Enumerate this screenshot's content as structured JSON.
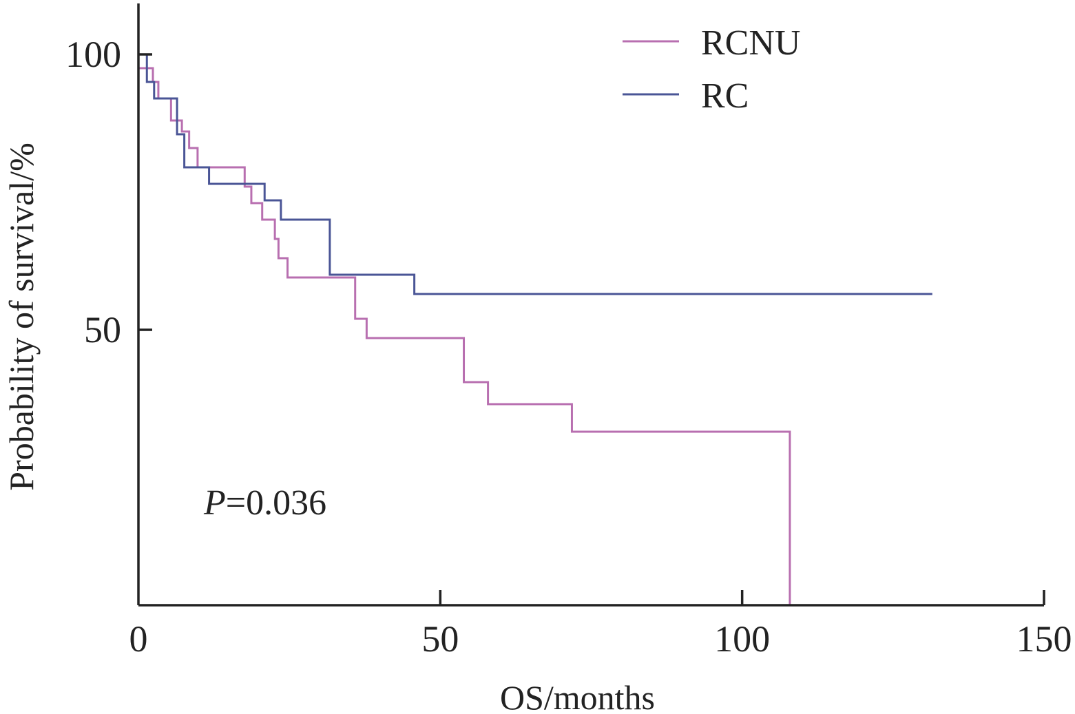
{
  "chart_data": {
    "type": "line",
    "title": "",
    "xlabel": "OS/months",
    "ylabel": "Probability of survival/%",
    "xlim": [
      0,
      150
    ],
    "ylim": [
      0,
      110
    ],
    "x_ticks": [
      0,
      50,
      100,
      150
    ],
    "y_ticks": [
      50,
      100
    ],
    "x_tick_labels": [
      "0",
      "50",
      "100",
      "150"
    ],
    "y_tick_labels": [
      "50",
      "100"
    ],
    "grid": false,
    "legend_position": "top-right",
    "annotation": {
      "prefix": "P",
      "text": "=0.036"
    },
    "series": [
      {
        "name": "RCNU",
        "color": "#b86fb0",
        "points": [
          [
            0,
            97.5
          ],
          [
            2.4,
            97.5
          ],
          [
            2.4,
            95
          ],
          [
            3.3,
            95
          ],
          [
            3.3,
            92
          ],
          [
            5.4,
            92
          ],
          [
            5.4,
            88
          ],
          [
            7.2,
            88
          ],
          [
            7.2,
            86
          ],
          [
            8.4,
            86
          ],
          [
            8.4,
            83
          ],
          [
            9.8,
            83
          ],
          [
            9.8,
            79.5
          ],
          [
            17.6,
            79.5
          ],
          [
            17.6,
            76
          ],
          [
            18.7,
            76
          ],
          [
            18.7,
            73
          ],
          [
            20.5,
            73
          ],
          [
            20.5,
            70
          ],
          [
            22.6,
            70
          ],
          [
            22.6,
            66.5
          ],
          [
            23.2,
            66.5
          ],
          [
            23.2,
            63
          ],
          [
            24.7,
            63
          ],
          [
            24.7,
            59.5
          ],
          [
            35.9,
            59.5
          ],
          [
            35.9,
            52
          ],
          [
            37.8,
            52
          ],
          [
            37.8,
            48.5
          ],
          [
            53.9,
            48.5
          ],
          [
            53.9,
            40.5
          ],
          [
            57.9,
            40.5
          ],
          [
            57.9,
            36.5
          ],
          [
            71.8,
            36.5
          ],
          [
            71.8,
            31.5
          ],
          [
            107.9,
            31.5
          ],
          [
            107.9,
            0
          ]
        ]
      },
      {
        "name": "RC",
        "color": "#4a5596",
        "points": [
          [
            0,
            100
          ],
          [
            1.4,
            100
          ],
          [
            1.4,
            95
          ],
          [
            2.6,
            95
          ],
          [
            2.6,
            92
          ],
          [
            6.4,
            92
          ],
          [
            6.4,
            85.5
          ],
          [
            7.6,
            85.5
          ],
          [
            7.6,
            79.5
          ],
          [
            11.7,
            79.5
          ],
          [
            11.7,
            76.5
          ],
          [
            20.9,
            76.5
          ],
          [
            20.9,
            73.5
          ],
          [
            23.6,
            73.5
          ],
          [
            23.6,
            70
          ],
          [
            31.7,
            70
          ],
          [
            31.7,
            60
          ],
          [
            45.7,
            60
          ],
          [
            45.7,
            56.5
          ],
          [
            131.5,
            56.5
          ]
        ]
      }
    ]
  }
}
